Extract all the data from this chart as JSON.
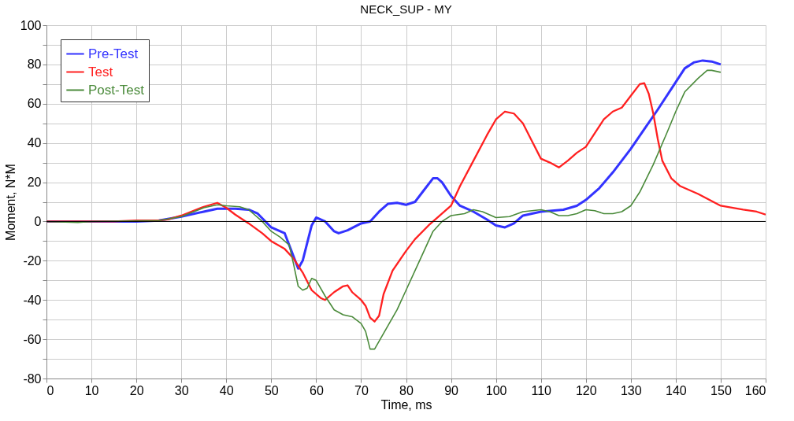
{
  "chart_data": {
    "type": "line",
    "title": "NECK_SUP - MY",
    "xlabel": "Time, ms",
    "ylabel": "Moment, N*M",
    "xlim": [
      0,
      160
    ],
    "xticks": [
      0,
      10,
      20,
      30,
      40,
      50,
      60,
      70,
      80,
      90,
      100,
      110,
      120,
      130,
      140,
      150,
      160
    ],
    "ylim": [
      -80,
      100
    ],
    "yticks": [
      -80,
      {
        "value": -70,
        "label": null
      },
      -60,
      {
        "value": -50,
        "label": null
      },
      -40,
      {
        "value": -30,
        "label": null
      },
      -20,
      {
        "value": -10,
        "label": null
      },
      0,
      {
        "value": 10,
        "label": null
      },
      20,
      {
        "value": 30,
        "label": null
      },
      40,
      {
        "value": 50,
        "label": null
      },
      60,
      {
        "value": 70,
        "label": null
      },
      80,
      {
        "value": 90,
        "label": null
      },
      100
    ],
    "grid": true,
    "legend": "top left",
    "marker": "none",
    "line_style": "solid",
    "ref_lines": [
      {
        "axis": "y",
        "value": 0,
        "color": "#000000"
      }
    ],
    "series": [
      {
        "name": "Pre-Test",
        "color": "#3333ff",
        "x": [
          0,
          10,
          20,
          25,
          30,
          35,
          38,
          42,
          45,
          47,
          50,
          53,
          55,
          56,
          57,
          59,
          60,
          62,
          64,
          65,
          67,
          70,
          72,
          74,
          76,
          78,
          80,
          82,
          84,
          86,
          87,
          88,
          90,
          92,
          95,
          98,
          100,
          102,
          104,
          106,
          110,
          115,
          118,
          120,
          123,
          126,
          130,
          133,
          136,
          140,
          142,
          144,
          146,
          148,
          150
        ],
        "values": [
          0,
          0,
          0,
          0.5,
          2.5,
          5,
          6.5,
          6.5,
          6,
          4,
          -3,
          -6,
          -18,
          -24,
          -20,
          -2,
          2,
          0,
          -5,
          -6,
          -4.5,
          -1,
          0,
          5,
          9,
          9.5,
          8.5,
          10,
          16,
          22,
          22,
          20,
          13,
          8,
          5,
          1,
          -2,
          -3,
          -1,
          3,
          5,
          6,
          8,
          11,
          17,
          25,
          37,
          47,
          57,
          71,
          78,
          81,
          82,
          81.5,
          80
        ]
      },
      {
        "name": "Test",
        "color": "#ff2020",
        "x": [
          0,
          15,
          20,
          25,
          27,
          30,
          35,
          38,
          40,
          42,
          45,
          48,
          50,
          53,
          55,
          57,
          59,
          61,
          62,
          64,
          66,
          67,
          68,
          70,
          71,
          72,
          73,
          74,
          75,
          77,
          80,
          82,
          85,
          88,
          90,
          92,
          95,
          98,
          100,
          102,
          104,
          106,
          108,
          110,
          112,
          114,
          116,
          118,
          120,
          122,
          124,
          126,
          128,
          130,
          132,
          133,
          134,
          135,
          136,
          137,
          139,
          141,
          145,
          150,
          155,
          158,
          160
        ],
        "values": [
          0,
          0,
          0.5,
          0.5,
          1,
          3,
          7.5,
          9.5,
          7,
          3.5,
          -1,
          -6,
          -10,
          -14,
          -19,
          -26,
          -35,
          -39,
          -40,
          -36,
          -33,
          -32.5,
          -36,
          -40,
          -43,
          -49,
          -51,
          -48,
          -37,
          -25,
          -15,
          -9,
          -2,
          4,
          8,
          18,
          31,
          44,
          52,
          56,
          55,
          50,
          41,
          32,
          30,
          27.5,
          31,
          35,
          38,
          45,
          52,
          56,
          58,
          64,
          70,
          70.5,
          65,
          55,
          42,
          31,
          22,
          18,
          14,
          8,
          6,
          5,
          3.5
        ]
      },
      {
        "name": "Post-Test",
        "color": "#4a8a3a",
        "x": [
          0,
          7,
          10,
          25,
          30,
          35,
          38,
          40,
          43,
          45,
          48,
          50,
          52,
          54,
          55,
          56,
          57,
          58,
          59,
          60,
          62,
          64,
          66,
          68,
          70,
          71,
          72,
          73,
          75,
          78,
          80,
          83,
          86,
          88,
          90,
          93,
          95,
          97,
          100,
          103,
          106,
          110,
          112,
          114,
          116,
          118,
          120,
          122,
          124,
          126,
          128,
          130,
          132,
          135,
          138,
          140,
          142,
          145,
          147,
          148,
          150
        ],
        "values": [
          0,
          -0.5,
          0,
          0.5,
          2.5,
          7,
          8.5,
          8,
          7.5,
          6,
          0,
          -5,
          -8,
          -12,
          -22,
          -33,
          -35,
          -34,
          -29,
          -30,
          -38,
          -45,
          -47.5,
          -48.5,
          -52,
          -56,
          -65,
          -65,
          -57,
          -45,
          -35,
          -20,
          -5,
          0,
          3,
          4,
          6,
          5,
          2,
          2.5,
          5,
          6,
          5,
          3,
          3,
          4,
          6,
          5.5,
          4,
          4,
          5,
          8,
          15,
          29,
          45,
          56,
          66,
          73,
          77,
          77,
          76
        ]
      }
    ]
  }
}
